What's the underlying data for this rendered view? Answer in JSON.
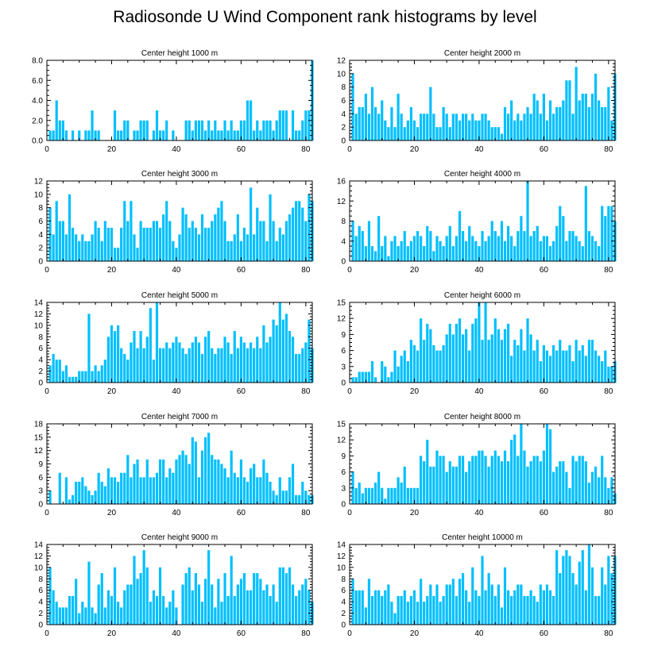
{
  "title": "Radiosonde U Wind Component rank histograms by level",
  "colors": {
    "bar": "#00bfff",
    "axis": "#000000",
    "background": "#ffffff"
  },
  "chart_data": [
    {
      "type": "bar",
      "title": "Center height 1000 m",
      "x_start": 1,
      "xlim": [
        0,
        82
      ],
      "ylim": [
        0,
        8
      ],
      "xticks": [
        0,
        20,
        40,
        60,
        80
      ],
      "yticks": [
        0,
        2,
        4,
        6,
        8
      ],
      "ytick_labels": [
        "0.0",
        "2.0",
        "4.0",
        "6.0",
        "8.0"
      ],
      "values": [
        1,
        1,
        4,
        2,
        2,
        1,
        0,
        1,
        0,
        1,
        0,
        1,
        1,
        3,
        1,
        1,
        0,
        0,
        0,
        0,
        3,
        1,
        1,
        2,
        2,
        0,
        1,
        1,
        2,
        2,
        2,
        0,
        1,
        3,
        1,
        1,
        2,
        0,
        1,
        0,
        0,
        0,
        2,
        2,
        1,
        2,
        2,
        2,
        1,
        2,
        1,
        2,
        1,
        1,
        2,
        1,
        2,
        1,
        1,
        2,
        2,
        4,
        4,
        1,
        2,
        1,
        2,
        2,
        2,
        1,
        2,
        3,
        3,
        3,
        0,
        3,
        1,
        1,
        2,
        3,
        3,
        8
      ]
    },
    {
      "type": "bar",
      "title": "Center height 2000 m",
      "x_start": 1,
      "xlim": [
        0,
        82
      ],
      "ylim": [
        0,
        12
      ],
      "xticks": [
        0,
        20,
        40,
        60,
        80
      ],
      "yticks": [
        0,
        2,
        4,
        6,
        8,
        10,
        12
      ],
      "ytick_labels": [
        "0",
        "2",
        "4",
        "6",
        "8",
        "10",
        "12"
      ],
      "values": [
        10,
        4,
        5,
        5,
        7,
        4,
        8,
        5,
        4,
        6,
        3,
        2,
        5,
        2,
        7,
        4,
        2,
        3,
        5,
        3,
        2,
        4,
        4,
        4,
        8,
        4,
        2,
        2,
        5,
        4,
        2,
        4,
        4,
        3,
        4,
        4,
        3,
        4,
        3,
        3,
        4,
        4,
        3,
        2,
        2,
        2,
        1,
        5,
        4,
        6,
        3,
        4,
        3,
        4,
        5,
        4,
        7,
        6,
        4,
        7,
        3,
        6,
        4,
        5,
        5,
        6,
        9,
        9,
        4,
        11,
        6,
        7,
        7,
        5,
        7,
        10,
        6,
        5,
        5,
        8,
        3,
        10
      ]
    },
    {
      "type": "bar",
      "title": "Center height 3000 m",
      "x_start": 1,
      "xlim": [
        0,
        82
      ],
      "ylim": [
        0,
        12
      ],
      "xticks": [
        0,
        20,
        40,
        60,
        80
      ],
      "yticks": [
        0,
        2,
        4,
        6,
        8,
        10,
        12
      ],
      "ytick_labels": [
        "0",
        "2",
        "4",
        "6",
        "8",
        "10",
        "12"
      ],
      "values": [
        8,
        4,
        9,
        6,
        6,
        4,
        10,
        5,
        4,
        3,
        4,
        3,
        3,
        4,
        6,
        5,
        3,
        6,
        5,
        5,
        2,
        2,
        5,
        9,
        6,
        9,
        4,
        2,
        6,
        5,
        5,
        5,
        6,
        6,
        5,
        7,
        9,
        6,
        3,
        2,
        4,
        8,
        7,
        5,
        6,
        5,
        4,
        7,
        5,
        5,
        6,
        7,
        8,
        9,
        6,
        3,
        3,
        4,
        7,
        3,
        5,
        4,
        11,
        4,
        8,
        6,
        6,
        3,
        10,
        6,
        3,
        5,
        4,
        6,
        7,
        8,
        9,
        9,
        8,
        6,
        10,
        9
      ]
    },
    {
      "type": "bar",
      "title": "Center height 4000 m",
      "x_start": 1,
      "xlim": [
        0,
        82
      ],
      "ylim": [
        0,
        16
      ],
      "xticks": [
        0,
        20,
        40,
        60,
        80
      ],
      "yticks": [
        0,
        4,
        8,
        12,
        16
      ],
      "ytick_labels": [
        "0",
        "4",
        "8",
        "12",
        "16"
      ],
      "values": [
        8,
        5,
        7,
        6,
        3,
        8,
        3,
        2,
        9,
        3,
        5,
        1,
        4,
        5,
        3,
        4,
        6,
        3,
        4,
        5,
        6,
        5,
        3,
        7,
        6,
        2,
        5,
        4,
        3,
        5,
        7,
        3,
        5,
        10,
        6,
        4,
        7,
        5,
        4,
        3,
        6,
        4,
        5,
        8,
        6,
        5,
        8,
        4,
        7,
        5,
        3,
        6,
        9,
        6,
        16,
        5,
        6,
        7,
        4,
        5,
        5,
        3,
        4,
        7,
        11,
        9,
        4,
        6,
        6,
        5,
        4,
        3,
        15,
        6,
        5,
        4,
        3,
        11,
        9,
        11,
        11,
        8
      ]
    },
    {
      "type": "bar",
      "title": "Center height 5000 m",
      "x_start": 1,
      "xlim": [
        0,
        82
      ],
      "ylim": [
        0,
        14
      ],
      "xticks": [
        0,
        20,
        40,
        60,
        80
      ],
      "yticks": [
        0,
        2,
        4,
        6,
        8,
        10,
        12,
        14
      ],
      "ytick_labels": [
        "0",
        "2",
        "4",
        "6",
        "8",
        "10",
        "12",
        "14"
      ],
      "values": [
        3,
        5,
        4,
        4,
        2,
        3,
        1,
        1,
        1,
        2,
        2,
        2,
        12,
        2,
        3,
        2,
        3,
        4,
        8,
        10,
        9,
        10,
        6,
        5,
        4,
        7,
        9,
        6,
        9,
        6,
        8,
        13,
        4,
        14,
        6,
        6,
        7,
        6,
        7,
        8,
        7,
        6,
        5,
        6,
        7,
        8,
        7,
        5,
        8,
        9,
        6,
        5,
        6,
        6,
        8,
        7,
        5,
        9,
        6,
        8,
        7,
        6,
        7,
        6,
        8,
        6,
        10,
        7,
        8,
        11,
        10,
        14,
        11,
        12,
        9,
        8,
        5,
        5,
        6,
        7,
        11,
        6
      ]
    },
    {
      "type": "bar",
      "title": "Center height 6000 m",
      "x_start": 1,
      "xlim": [
        0,
        82
      ],
      "ylim": [
        0,
        15
      ],
      "xticks": [
        0,
        20,
        40,
        60,
        80
      ],
      "yticks": [
        0,
        3,
        6,
        9,
        12,
        15
      ],
      "ytick_labels": [
        "0",
        "3",
        "6",
        "9",
        "12",
        "15"
      ],
      "values": [
        1,
        1,
        2,
        2,
        2,
        2,
        4,
        1,
        0,
        4,
        3,
        1,
        2,
        6,
        3,
        5,
        6,
        4,
        8,
        7,
        6,
        12,
        8,
        11,
        10,
        7,
        6,
        6,
        7,
        9,
        11,
        9,
        11,
        12,
        9,
        10,
        6,
        11,
        12,
        15,
        8,
        15,
        8,
        9,
        12,
        10,
        8,
        10,
        11,
        5,
        8,
        7,
        10,
        6,
        12,
        9,
        6,
        8,
        4,
        7,
        6,
        5,
        7,
        6,
        8,
        6,
        6,
        7,
        4,
        8,
        6,
        7,
        5,
        8,
        8,
        6,
        5,
        4,
        6,
        3,
        3,
        4
      ]
    },
    {
      "type": "bar",
      "title": "Center height 7000 m",
      "x_start": 1,
      "xlim": [
        0,
        82
      ],
      "ylim": [
        0,
        18
      ],
      "xticks": [
        0,
        20,
        40,
        60,
        80
      ],
      "yticks": [
        0,
        3,
        6,
        9,
        12,
        15,
        18
      ],
      "ytick_labels": [
        "0",
        "3",
        "6",
        "9",
        "12",
        "15",
        "18"
      ],
      "values": [
        3,
        0,
        0,
        7,
        0,
        6,
        1,
        2,
        5,
        5,
        6,
        4,
        3,
        2,
        3,
        7,
        5,
        4,
        8,
        6,
        6,
        5,
        7,
        7,
        11,
        6,
        9,
        10,
        6,
        6,
        10,
        6,
        6,
        7,
        10,
        10,
        6,
        8,
        7,
        10,
        11,
        12,
        11,
        9,
        15,
        14,
        6,
        12,
        15,
        16,
        11,
        10,
        10,
        9,
        8,
        6,
        12,
        7,
        6,
        10,
        6,
        5,
        8,
        9,
        6,
        6,
        10,
        7,
        5,
        3,
        2,
        6,
        3,
        3,
        6,
        9,
        2,
        2,
        5,
        3,
        2,
        2
      ]
    },
    {
      "type": "bar",
      "title": "Center height 8000 m",
      "x_start": 1,
      "xlim": [
        0,
        82
      ],
      "ylim": [
        0,
        15
      ],
      "xticks": [
        0,
        20,
        40,
        60,
        80
      ],
      "yticks": [
        0,
        3,
        6,
        9,
        12,
        15
      ],
      "ytick_labels": [
        "0",
        "3",
        "6",
        "9",
        "12",
        "15"
      ],
      "values": [
        6,
        3,
        4,
        2,
        3,
        3,
        3,
        4,
        6,
        3,
        1,
        3,
        3,
        3,
        5,
        4,
        7,
        3,
        3,
        3,
        3,
        9,
        8,
        12,
        7,
        7,
        10,
        9,
        9,
        6,
        8,
        7,
        7,
        9,
        9,
        6,
        8,
        9,
        9,
        10,
        10,
        9,
        7,
        9,
        10,
        9,
        8,
        10,
        8,
        12,
        13,
        9,
        15,
        10,
        7,
        8,
        9,
        9,
        8,
        10,
        15,
        14,
        6,
        7,
        8,
        8,
        6,
        3,
        9,
        8,
        9,
        9,
        8,
        4,
        6,
        7,
        5,
        9,
        5,
        3,
        5,
        2
      ]
    },
    {
      "type": "bar",
      "title": "Center height 9000 m",
      "x_start": 1,
      "xlim": [
        0,
        82
      ],
      "ylim": [
        0,
        14
      ],
      "xticks": [
        0,
        20,
        40,
        60,
        80
      ],
      "yticks": [
        0,
        2,
        4,
        6,
        8,
        10,
        12,
        14
      ],
      "ytick_labels": [
        "0",
        "2",
        "4",
        "6",
        "8",
        "10",
        "12",
        "14"
      ],
      "values": [
        10,
        6,
        4,
        3,
        3,
        3,
        5,
        5,
        8,
        2,
        4,
        3,
        11,
        3,
        2,
        7,
        9,
        3,
        6,
        5,
        10,
        4,
        3,
        6,
        7,
        7,
        12,
        8,
        9,
        13,
        10,
        4,
        6,
        5,
        10,
        5,
        3,
        4,
        6,
        3,
        0,
        7,
        9,
        10,
        6,
        9,
        7,
        4,
        8,
        13,
        7,
        3,
        8,
        4,
        9,
        5,
        12,
        5,
        7,
        8,
        9,
        6,
        6,
        9,
        9,
        8,
        6,
        7,
        5,
        7,
        4,
        10,
        10,
        9,
        10,
        7,
        5,
        6,
        7,
        8,
        6,
        4
      ]
    },
    {
      "type": "bar",
      "title": "Center height 10000 m",
      "x_start": 1,
      "xlim": [
        0,
        82
      ],
      "ylim": [
        0,
        14
      ],
      "xticks": [
        0,
        20,
        40,
        60,
        80
      ],
      "yticks": [
        0,
        2,
        4,
        6,
        8,
        10,
        12,
        14
      ],
      "ytick_labels": [
        "0",
        "2",
        "4",
        "6",
        "8",
        "10",
        "12",
        "14"
      ],
      "values": [
        8,
        6,
        6,
        6,
        3,
        8,
        5,
        6,
        6,
        5,
        6,
        7,
        4,
        2,
        5,
        5,
        6,
        4,
        5,
        6,
        4,
        8,
        4,
        5,
        7,
        5,
        7,
        4,
        5,
        7,
        7,
        8,
        5,
        8,
        9,
        6,
        4,
        10,
        6,
        5,
        12,
        6,
        9,
        7,
        5,
        7,
        3,
        10,
        6,
        5,
        6,
        7,
        7,
        5,
        5,
        6,
        5,
        4,
        7,
        6,
        7,
        6,
        5,
        13,
        9,
        12,
        13,
        12,
        9,
        7,
        11,
        13,
        6,
        14,
        10,
        5,
        5,
        10,
        7,
        12,
        9,
        12
      ]
    }
  ]
}
